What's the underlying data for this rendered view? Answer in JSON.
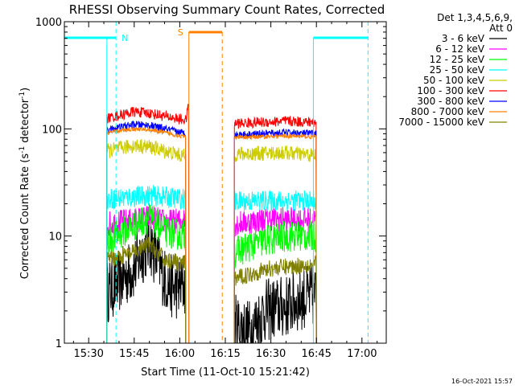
{
  "chart_data": {
    "type": "line",
    "title": "RHESSI Observing Summary Count Rates, Corrected",
    "xlabel": "Start Time (11-Oct-10 15:21:42)",
    "ylabel": "Corrected Count Rate (s",
    "ylabel_sup1": "-1",
    "ylabel_mid": " detector",
    "ylabel_sup2": "-1",
    "ylabel_end": ")",
    "yscale": "log",
    "ylim": [
      1,
      1000
    ],
    "xlim_minutes": [
      15.22,
      17.13
    ],
    "xlim": [
      "15:22",
      "17:08"
    ],
    "x_ticks": [
      {
        "label": "15:30",
        "min": 930
      },
      {
        "label": "15:45",
        "min": 945
      },
      {
        "label": "16:00",
        "min": 960
      },
      {
        "label": "16:15",
        "min": 975
      },
      {
        "label": "16:30",
        "min": 990
      },
      {
        "label": "16:45",
        "min": 1005
      },
      {
        "label": "17:00",
        "min": 1020
      }
    ],
    "y_ticks": [
      {
        "label": "1",
        "value": 1
      },
      {
        "label": "10",
        "value": 10
      },
      {
        "label": "100",
        "value": 100
      },
      {
        "label": "1000",
        "value": 1000
      }
    ],
    "legend": {
      "placement": "right",
      "header1": "Det 1,3,4,5,6,9,",
      "header2": "Att 0"
    },
    "series": [
      {
        "name": "3 - 6 keV",
        "color": "#000000",
        "seg1": [
          [
            936,
            3.0
          ],
          [
            945,
            5.0
          ],
          [
            950,
            9.0
          ],
          [
            955,
            4.0
          ],
          [
            958,
            3.2
          ],
          [
            962,
            3.5
          ]
        ],
        "seg2": [
          [
            978,
            1.5
          ],
          [
            983,
            1.3
          ],
          [
            988,
            2.0
          ],
          [
            995,
            2.2
          ],
          [
            1000,
            2.6
          ],
          [
            1005,
            2.8
          ]
        ],
        "noise": 0.3
      },
      {
        "name": "6 - 12 keV",
        "color": "#ff00ff",
        "seg1": [
          [
            936,
            13.0
          ],
          [
            945,
            14.0
          ],
          [
            950,
            15.0
          ],
          [
            955,
            13.5
          ],
          [
            962,
            14.0
          ]
        ],
        "seg2": [
          [
            978,
            13.0
          ],
          [
            990,
            14.5
          ],
          [
            1005,
            14.0
          ]
        ],
        "noise": 0.12
      },
      {
        "name": "12 - 25 keV",
        "color": "#00ff00",
        "seg1": [
          [
            936,
            9.0
          ],
          [
            945,
            12.5
          ],
          [
            950,
            15.0
          ],
          [
            955,
            11.0
          ],
          [
            962,
            10.0
          ]
        ],
        "seg2": [
          [
            978,
            7.0
          ],
          [
            985,
            8.5
          ],
          [
            995,
            10.0
          ],
          [
            1005,
            10.0
          ]
        ],
        "noise": 0.15
      },
      {
        "name": "25 - 50 keV",
        "color": "#00ffff",
        "seg1": [
          [
            936,
            22.0
          ],
          [
            950,
            24.0
          ],
          [
            962,
            22.0
          ]
        ],
        "seg2": [
          [
            978,
            21.0
          ],
          [
            995,
            21.5
          ],
          [
            1005,
            21.0
          ]
        ],
        "noise": 0.1
      },
      {
        "name": "50 - 100 keV",
        "color": "#cccc00",
        "seg1": [
          [
            936,
            62.0
          ],
          [
            945,
            70.0
          ],
          [
            950,
            68.0
          ],
          [
            962,
            55.0
          ]
        ],
        "seg2": [
          [
            978,
            58.0
          ],
          [
            995,
            60.0
          ],
          [
            1005,
            56.0
          ]
        ],
        "noise": 0.07
      },
      {
        "name": "100 - 300 keV",
        "color": "#ff0000",
        "seg1": [
          [
            936,
            125.0
          ],
          [
            945,
            145.0
          ],
          [
            950,
            140.0
          ],
          [
            962,
            120.0
          ],
          [
            963,
            175.0
          ]
        ],
        "seg2": [
          [
            978,
            112.0
          ],
          [
            995,
            118.0
          ],
          [
            1005,
            115.0
          ]
        ],
        "noise": 0.05
      },
      {
        "name": "300 - 800 keV",
        "color": "#0000ff",
        "seg1": [
          [
            936,
            98.0
          ],
          [
            945,
            110.0
          ],
          [
            950,
            108.0
          ],
          [
            962,
            90.0
          ]
        ],
        "seg2": [
          [
            978,
            88.0
          ],
          [
            995,
            92.0
          ],
          [
            1005,
            90.0
          ]
        ],
        "noise": 0.035
      },
      {
        "name": "800 - 7000 keV",
        "color": "#ff8000",
        "seg1": [
          [
            936,
            92.0
          ],
          [
            945,
            100.0
          ],
          [
            950,
            98.0
          ],
          [
            962,
            84.0
          ]
        ],
        "seg2": [
          [
            978,
            83.0
          ],
          [
            995,
            86.0
          ],
          [
            1005,
            84.0
          ]
        ],
        "noise": 0.02
      },
      {
        "name": "7000 - 15000 keV",
        "color": "#808000",
        "seg1": [
          [
            936,
            6.0
          ],
          [
            945,
            7.0
          ],
          [
            950,
            8.5
          ],
          [
            955,
            6.0
          ],
          [
            962,
            5.5
          ]
        ],
        "seg2": [
          [
            978,
            4.0
          ],
          [
            990,
            5.0
          ],
          [
            1005,
            5.5
          ]
        ],
        "noise": 0.08
      }
    ],
    "annotations": {
      "night": {
        "label": "N",
        "color": "#00ffff",
        "intervals": [
          [
            922,
            939
          ],
          [
            1004,
            1022
          ]
        ]
      },
      "saa": {
        "label": "S",
        "color": "#ff8000",
        "interval": [
          963,
          974
        ]
      }
    }
  },
  "footer": {
    "timestamp": "16-Oct-2021 15:57"
  }
}
